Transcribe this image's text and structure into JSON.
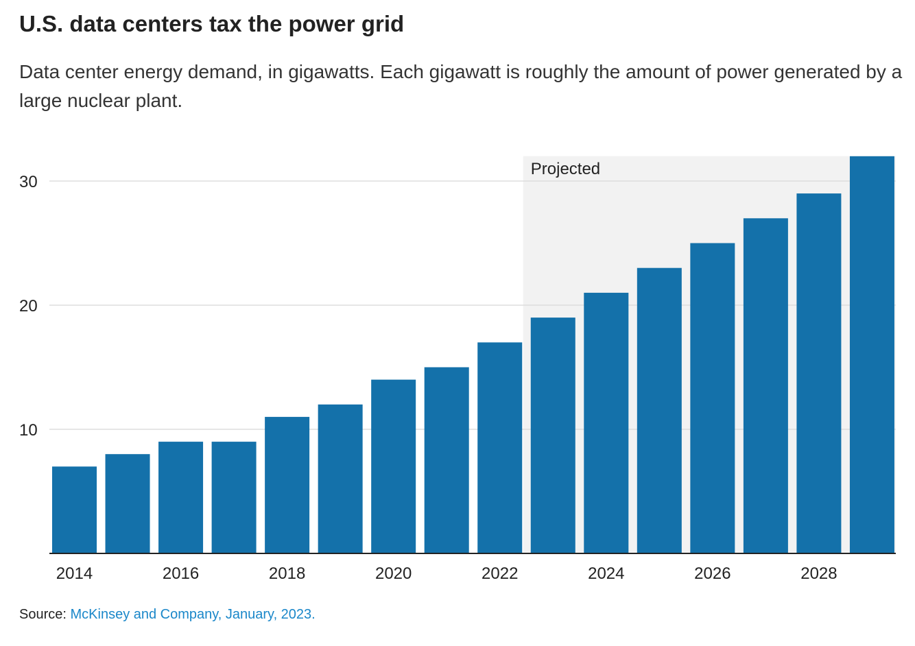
{
  "chart_data": {
    "type": "bar",
    "title": "U.S. data centers tax the power grid",
    "subtitle": "Data center energy demand, in gigawatts. Each gigawatt is roughly the amount of power generated by a large nuclear plant.",
    "xlabel": "",
    "ylabel": "",
    "categories": [
      "2014",
      "2015",
      "2016",
      "2017",
      "2018",
      "2019",
      "2020",
      "2021",
      "2022",
      "2023",
      "2024",
      "2025",
      "2026",
      "2027",
      "2028",
      "2029"
    ],
    "values": [
      7,
      8,
      9,
      9,
      11,
      12,
      14,
      15,
      17,
      19,
      21,
      23,
      25,
      27,
      29,
      32
    ],
    "ylim": [
      0,
      32
    ],
    "yticks": [
      "10",
      "20",
      "30"
    ],
    "xticks": [
      "2014",
      "2016",
      "2018",
      "2020",
      "2022",
      "2024",
      "2026",
      "2028"
    ],
    "grid": true,
    "annotation": {
      "label": "Projected",
      "from_year": "2023",
      "to_year": "2029"
    },
    "colors": {
      "bar": "#1471aa",
      "projected_bg": "#f2f2f2",
      "grid": "#dddddd"
    }
  },
  "source": {
    "label": "Source:",
    "link_text": "McKinsey and Company, January, 2023."
  }
}
